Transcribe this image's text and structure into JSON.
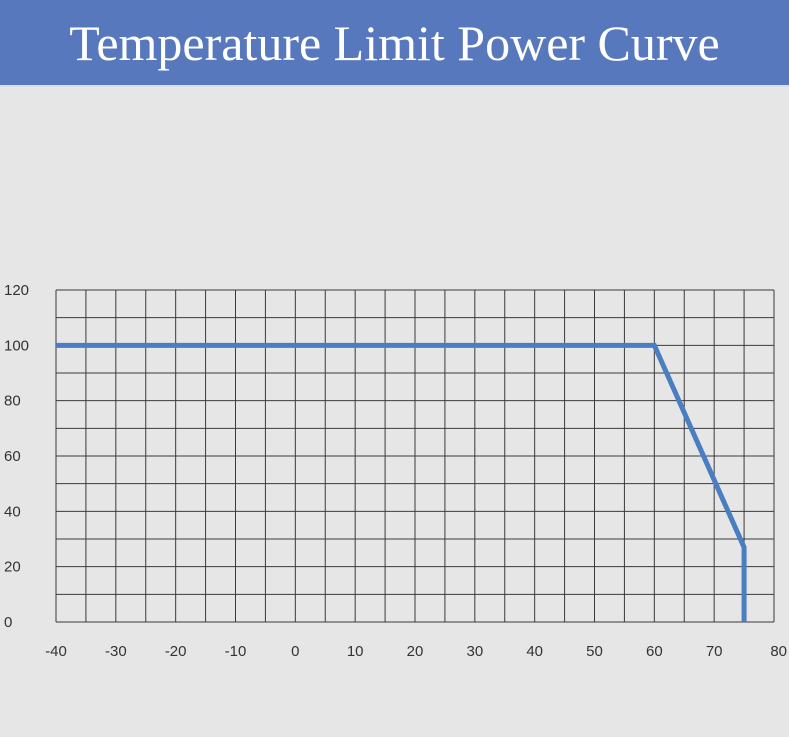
{
  "header": {
    "title": "Temperature Limit Power Curve"
  },
  "chart_data": {
    "type": "line",
    "title": "Temperature Limit Power Curve",
    "xlabel": "",
    "ylabel": "",
    "xlim": [
      -40,
      80
    ],
    "ylim": [
      0,
      120
    ],
    "x_grid_step": 5,
    "y_grid_step": 10,
    "x_ticks": [
      -40,
      -30,
      -20,
      -10,
      0,
      10,
      20,
      30,
      40,
      50,
      60,
      70,
      80
    ],
    "y_ticks": [
      0,
      20,
      40,
      60,
      80,
      100,
      120
    ],
    "grid": true,
    "series": [
      {
        "x": [
          -40,
          60,
          75,
          75
        ],
        "y": [
          100,
          100,
          27,
          0
        ],
        "color": "#4a7ec1"
      }
    ]
  },
  "colors": {
    "header_bg": "#5878bd",
    "background": "#e6e6e7",
    "grid": "#3a3a3a",
    "line": "#4a7ec1"
  }
}
